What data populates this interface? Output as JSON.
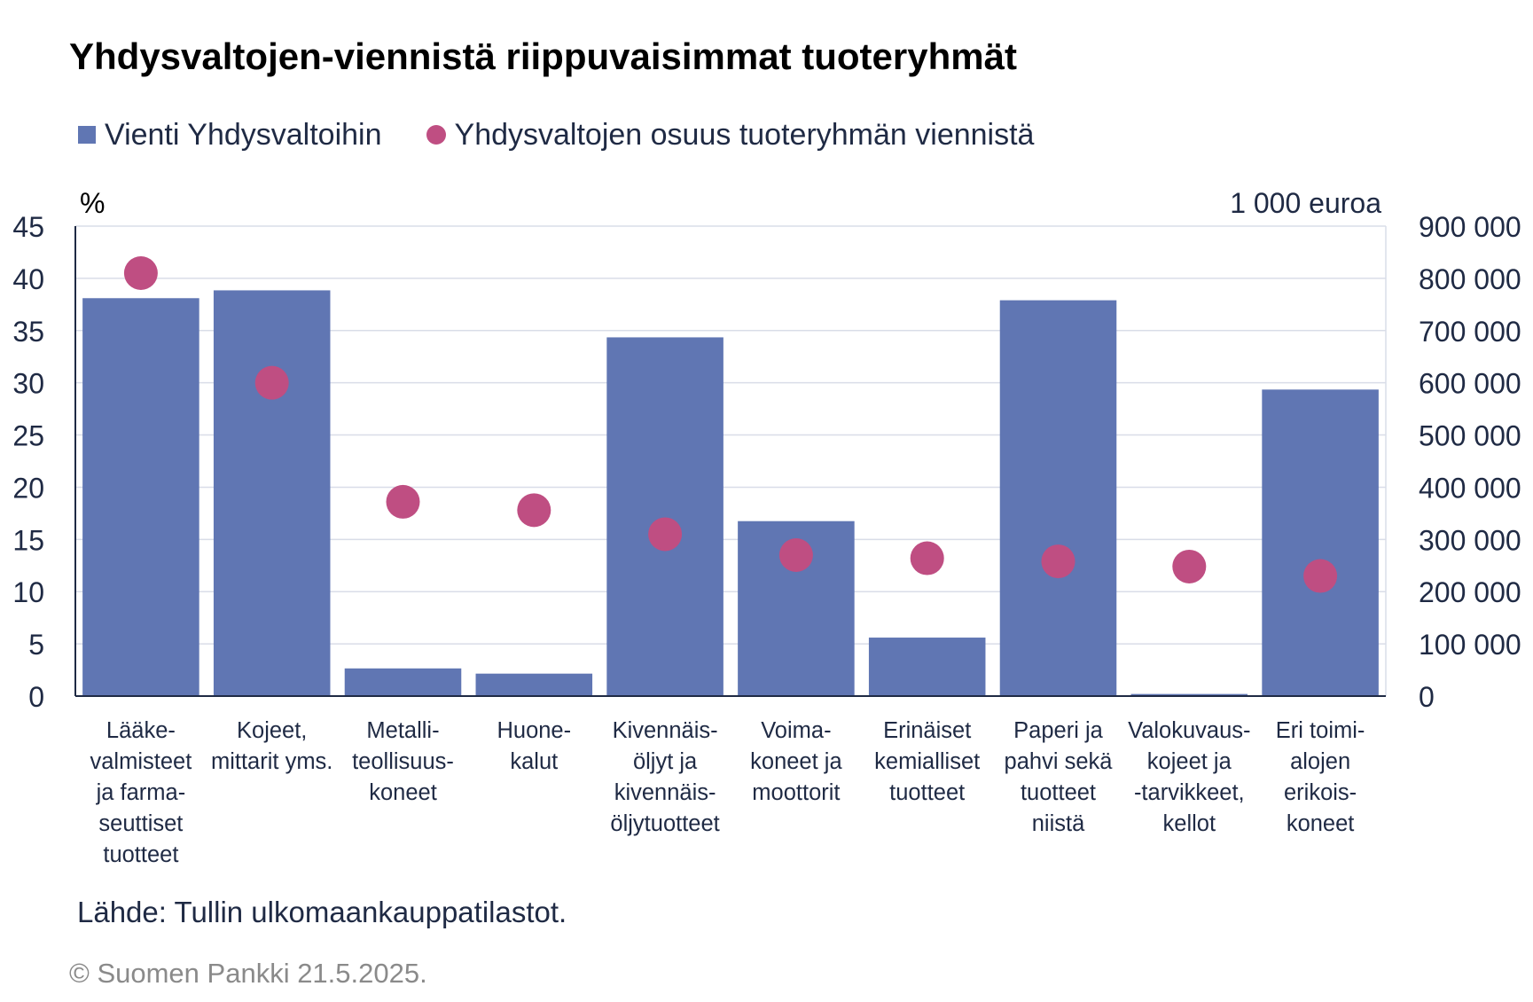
{
  "title": "Yhdysvaltojen-viennistä riippuvaisimmat tuoteryhmät",
  "legend": {
    "bars": "Vienti Yhdysvaltoihin",
    "dots": "Yhdysvaltojen osuus tuoteryhmän viennistä"
  },
  "source": "Lähde: Tullin ulkomaankauppatilastot.",
  "copyright": "© Suomen Pankki 21.5.2025.",
  "colors": {
    "bar": "#6076B3",
    "dot": "#BF4E82",
    "grid": "#D9DDE8",
    "axis": "#1f2a44"
  },
  "chart_data": {
    "type": "bar",
    "title": "Yhdysvaltojen-viennistä riippuvaisimmat tuoteryhmät",
    "left_axis": {
      "unit_label": "%",
      "range": [
        0,
        45
      ],
      "ticks": [
        "0",
        "5",
        "10",
        "15",
        "20",
        "25",
        "30",
        "35",
        "40",
        "45"
      ]
    },
    "right_axis": {
      "unit_label": "1 000 euroa",
      "range": [
        0,
        900000
      ],
      "ticks": [
        "0",
        "100 000",
        "200 000",
        "300 000",
        "400 000",
        "500 000",
        "600 000",
        "700 000",
        "800 000",
        "900 000"
      ]
    },
    "categories": [
      [
        "Lääke-",
        "valmisteet",
        "ja farma-",
        "seuttiset",
        "tuotteet"
      ],
      [
        "Kojeet,",
        "mittarit yms."
      ],
      [
        "Metalli-",
        "teollisuus-",
        "koneet"
      ],
      [
        "Huone-",
        "kalut"
      ],
      [
        "Kivennäis-",
        "öljyt ja",
        "kivennäis-",
        "öljytuotteet"
      ],
      [
        "Voima-",
        "koneet ja",
        "moottorit"
      ],
      [
        "Erinäiset",
        "kemialliset",
        "tuotteet"
      ],
      [
        "Paperi ja",
        "pahvi sekä",
        "tuotteet",
        "niistä"
      ],
      [
        "Valokuvaus-",
        "kojeet ja",
        "-tarvikkeet,",
        "kellot"
      ],
      [
        "Eri toimi-",
        "alojen",
        "erikois-",
        "koneet"
      ]
    ],
    "series": [
      {
        "name": "Vienti Yhdysvaltoihin",
        "axis": "right",
        "values": [
          762000,
          777000,
          53000,
          43000,
          687000,
          335000,
          112000,
          758000,
          4000,
          587000
        ]
      },
      {
        "name": "Yhdysvaltojen osuus tuoteryhmän viennistä",
        "axis": "left",
        "values": [
          40.5,
          30.0,
          18.6,
          17.8,
          15.5,
          13.5,
          13.2,
          12.9,
          12.4,
          11.5
        ]
      }
    ],
    "grid": true,
    "legend_position": "top-left"
  }
}
